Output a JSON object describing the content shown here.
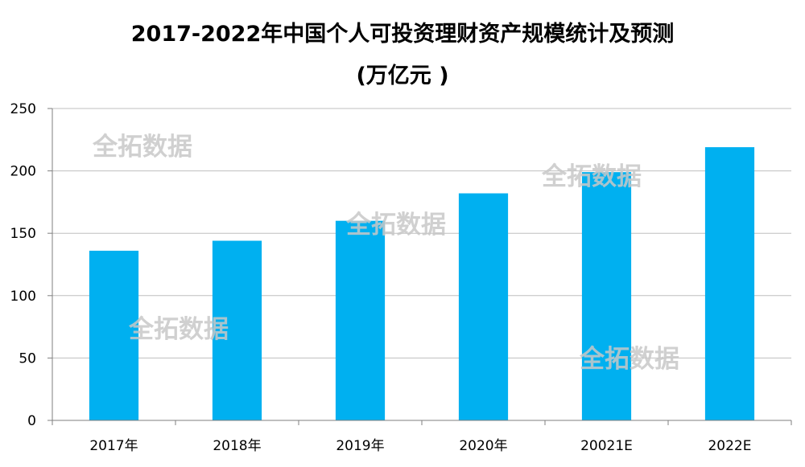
{
  "chart_data": {
    "type": "bar",
    "title_line1": "2017-2022年中国个人可投资理财资产规模统计及预测",
    "title_line2": "(万亿元 )",
    "categories": [
      "2017年",
      "2018年",
      "2019年",
      "2020年",
      "20021E",
      "2022E"
    ],
    "values": [
      136,
      144,
      160,
      182,
      199,
      219
    ],
    "ylim": [
      0,
      250
    ],
    "yticks": [
      0,
      50,
      100,
      150,
      200,
      250
    ],
    "grid": true,
    "bar_color": "#00B0F0",
    "watermark": "全拓数据"
  }
}
